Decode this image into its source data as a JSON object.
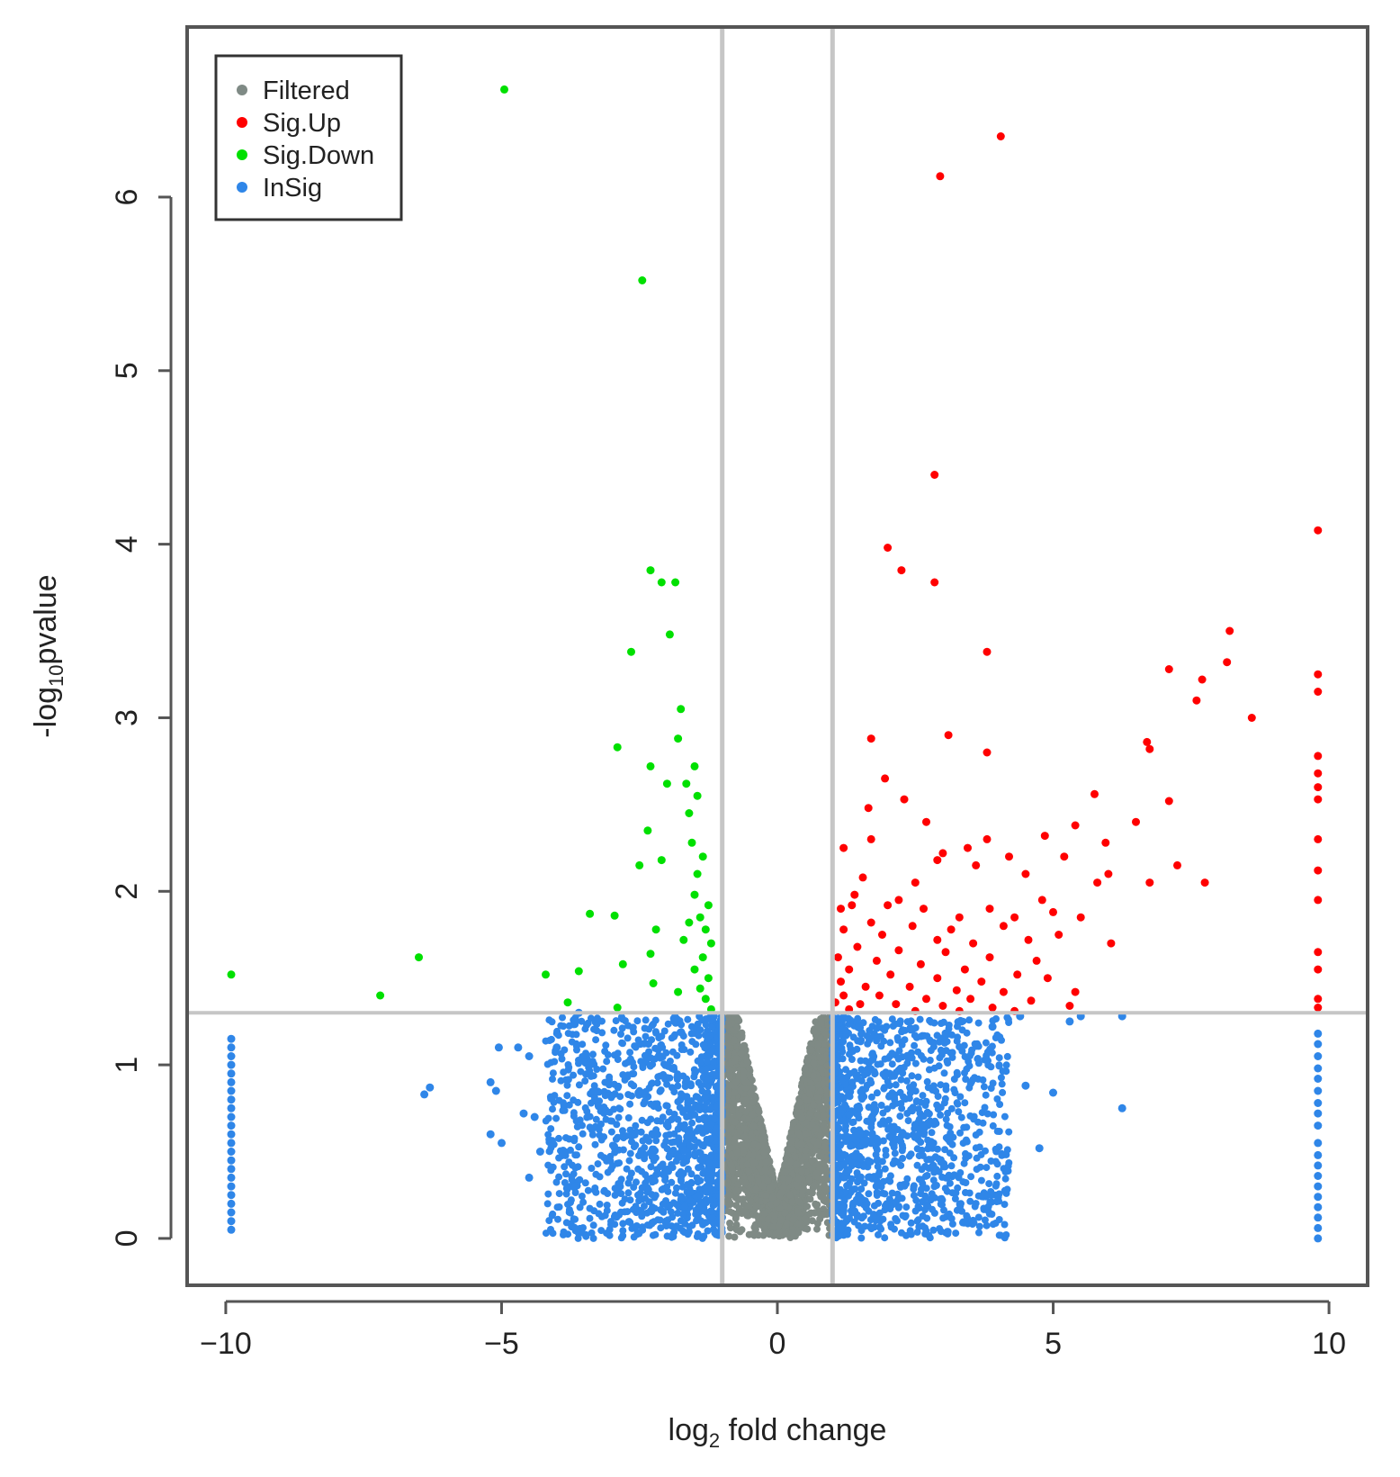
{
  "chart_data": {
    "type": "scatter",
    "title": "",
    "xlabel": "log2 fold change",
    "ylabel": "-log10pvalue",
    "xlim": [
      -10.7,
      10.7
    ],
    "ylim": [
      -0.27,
      6.98
    ],
    "xticks": [
      -10,
      -5,
      0,
      5,
      10
    ],
    "yticks": [
      0,
      1,
      2,
      3,
      4,
      5,
      6
    ],
    "xtick_labels": [
      "−10",
      "−5",
      "0",
      "5",
      "10"
    ],
    "ytick_labels": [
      "0",
      "1",
      "2",
      "3",
      "4",
      "5",
      "6"
    ],
    "thresholds": {
      "fold_change_lines": [
        -1,
        1
      ],
      "pvalue_line": 1.3
    },
    "legend": {
      "position": "top-left",
      "entries": [
        {
          "label": "Filtered",
          "color": "#7f8a85"
        },
        {
          "label": "Sig.Up",
          "color": "#ff0000"
        },
        {
          "label": "Sig.Down",
          "color": "#00e000"
        },
        {
          "label": "InSig",
          "color": "#2f86e8"
        }
      ]
    },
    "series": [
      {
        "name": "Sig.Down",
        "color": "#00e000",
        "points": [
          [
            -4.95,
            6.62
          ],
          [
            -2.45,
            5.52
          ],
          [
            -2.3,
            3.85
          ],
          [
            -2.1,
            3.78
          ],
          [
            -1.85,
            3.78
          ],
          [
            -1.95,
            3.48
          ],
          [
            -2.65,
            3.38
          ],
          [
            -1.75,
            3.05
          ],
          [
            -2.9,
            2.83
          ],
          [
            -1.8,
            2.88
          ],
          [
            -2.3,
            2.72
          ],
          [
            -1.5,
            2.72
          ],
          [
            -1.65,
            2.62
          ],
          [
            -2.0,
            2.62
          ],
          [
            -1.45,
            2.55
          ],
          [
            -1.6,
            2.45
          ],
          [
            -2.35,
            2.35
          ],
          [
            -1.55,
            2.28
          ],
          [
            -1.35,
            2.2
          ],
          [
            -2.5,
            2.15
          ],
          [
            -2.1,
            2.18
          ],
          [
            -1.45,
            2.1
          ],
          [
            -1.5,
            1.98
          ],
          [
            -1.25,
            1.92
          ],
          [
            -1.4,
            1.85
          ],
          [
            -3.4,
            1.87
          ],
          [
            -2.95,
            1.86
          ],
          [
            -1.6,
            1.82
          ],
          [
            -1.3,
            1.78
          ],
          [
            -2.2,
            1.78
          ],
          [
            -1.7,
            1.72
          ],
          [
            -1.2,
            1.7
          ],
          [
            -2.3,
            1.64
          ],
          [
            -1.35,
            1.62
          ],
          [
            -2.8,
            1.58
          ],
          [
            -6.5,
            1.62
          ],
          [
            -1.5,
            1.55
          ],
          [
            -3.6,
            1.54
          ],
          [
            -4.2,
            1.52
          ],
          [
            -1.25,
            1.5
          ],
          [
            -2.25,
            1.47
          ],
          [
            -9.9,
            1.52
          ],
          [
            -1.4,
            1.44
          ],
          [
            -1.8,
            1.42
          ],
          [
            -7.2,
            1.4
          ],
          [
            -1.3,
            1.38
          ],
          [
            -3.8,
            1.36
          ],
          [
            -2.9,
            1.33
          ],
          [
            -1.2,
            1.32
          ]
        ]
      },
      {
        "name": "Sig.Up",
        "color": "#ff0000",
        "points": [
          [
            4.05,
            6.35
          ],
          [
            2.95,
            6.12
          ],
          [
            2.85,
            4.4
          ],
          [
            2.0,
            3.98
          ],
          [
            2.25,
            3.85
          ],
          [
            2.85,
            3.78
          ],
          [
            9.8,
            4.08
          ],
          [
            3.8,
            3.38
          ],
          [
            8.2,
            3.5
          ],
          [
            7.1,
            3.28
          ],
          [
            8.15,
            3.32
          ],
          [
            7.7,
            3.22
          ],
          [
            9.8,
            3.25
          ],
          [
            9.8,
            3.15
          ],
          [
            7.6,
            3.1
          ],
          [
            8.6,
            3.0
          ],
          [
            3.1,
            2.9
          ],
          [
            1.7,
            2.88
          ],
          [
            6.7,
            2.86
          ],
          [
            6.75,
            2.82
          ],
          [
            3.8,
            2.8
          ],
          [
            9.8,
            2.78
          ],
          [
            9.8,
            2.68
          ],
          [
            1.95,
            2.65
          ],
          [
            9.8,
            2.6
          ],
          [
            5.75,
            2.56
          ],
          [
            9.8,
            2.53
          ],
          [
            2.3,
            2.53
          ],
          [
            7.1,
            2.52
          ],
          [
            1.65,
            2.48
          ],
          [
            2.7,
            2.4
          ],
          [
            6.5,
            2.4
          ],
          [
            5.4,
            2.38
          ],
          [
            4.85,
            2.32
          ],
          [
            9.8,
            2.3
          ],
          [
            1.7,
            2.3
          ],
          [
            3.8,
            2.3
          ],
          [
            5.95,
            2.28
          ],
          [
            1.2,
            2.25
          ],
          [
            3.45,
            2.25
          ],
          [
            3.0,
            2.22
          ],
          [
            4.2,
            2.2
          ],
          [
            2.9,
            2.18
          ],
          [
            7.25,
            2.15
          ],
          [
            9.8,
            2.12
          ],
          [
            6.0,
            2.1
          ],
          [
            7.75,
            2.05
          ],
          [
            6.75,
            2.05
          ],
          [
            5.8,
            2.05
          ],
          [
            1.55,
            2.08
          ],
          [
            2.5,
            2.05
          ],
          [
            4.5,
            2.1
          ],
          [
            5.2,
            2.2
          ],
          [
            3.6,
            2.15
          ],
          [
            1.4,
            1.98
          ],
          [
            9.8,
            1.95
          ],
          [
            4.8,
            1.95
          ],
          [
            2.2,
            1.95
          ],
          [
            3.85,
            1.9
          ],
          [
            5.0,
            1.88
          ],
          [
            1.15,
            1.9
          ],
          [
            1.35,
            1.92
          ],
          [
            2.0,
            1.92
          ],
          [
            2.65,
            1.9
          ],
          [
            3.3,
            1.85
          ],
          [
            4.3,
            1.85
          ],
          [
            5.5,
            1.85
          ],
          [
            1.7,
            1.82
          ],
          [
            2.45,
            1.8
          ],
          [
            3.15,
            1.78
          ],
          [
            4.1,
            1.8
          ],
          [
            1.2,
            1.78
          ],
          [
            1.9,
            1.75
          ],
          [
            2.9,
            1.72
          ],
          [
            3.55,
            1.7
          ],
          [
            4.55,
            1.72
          ],
          [
            5.1,
            1.75
          ],
          [
            6.05,
            1.7
          ],
          [
            1.45,
            1.68
          ],
          [
            2.2,
            1.66
          ],
          [
            3.05,
            1.65
          ],
          [
            3.85,
            1.62
          ],
          [
            4.7,
            1.6
          ],
          [
            1.1,
            1.62
          ],
          [
            1.8,
            1.6
          ],
          [
            9.8,
            1.65
          ],
          [
            2.6,
            1.58
          ],
          [
            3.4,
            1.55
          ],
          [
            4.35,
            1.52
          ],
          [
            1.3,
            1.55
          ],
          [
            2.05,
            1.52
          ],
          [
            2.9,
            1.5
          ],
          [
            3.7,
            1.48
          ],
          [
            4.9,
            1.5
          ],
          [
            1.15,
            1.48
          ],
          [
            9.8,
            1.55
          ],
          [
            1.6,
            1.45
          ],
          [
            2.4,
            1.45
          ],
          [
            3.25,
            1.43
          ],
          [
            4.1,
            1.42
          ],
          [
            5.4,
            1.42
          ],
          [
            1.2,
            1.4
          ],
          [
            1.85,
            1.4
          ],
          [
            2.7,
            1.38
          ],
          [
            3.5,
            1.38
          ],
          [
            4.6,
            1.37
          ],
          [
            9.8,
            1.38
          ],
          [
            1.05,
            1.36
          ],
          [
            1.5,
            1.35
          ],
          [
            2.15,
            1.35
          ],
          [
            3.0,
            1.34
          ],
          [
            3.9,
            1.33
          ],
          [
            5.3,
            1.34
          ],
          [
            9.8,
            1.33
          ],
          [
            1.3,
            1.32
          ],
          [
            2.5,
            1.31
          ],
          [
            3.3,
            1.31
          ],
          [
            4.3,
            1.31
          ]
        ]
      },
      {
        "name": "InSig",
        "color": "#2f86e8",
        "points": [
          [
            -9.9,
            1.15
          ],
          [
            -9.9,
            1.1
          ],
          [
            -9.9,
            1.05
          ],
          [
            -9.9,
            1.0
          ],
          [
            -9.9,
            0.95
          ],
          [
            -9.9,
            0.9
          ],
          [
            -9.9,
            0.85
          ],
          [
            -9.9,
            0.8
          ],
          [
            -9.9,
            0.75
          ],
          [
            -9.9,
            0.7
          ],
          [
            -9.9,
            0.65
          ],
          [
            -9.9,
            0.6
          ],
          [
            -9.9,
            0.55
          ],
          [
            -9.9,
            0.5
          ],
          [
            -9.9,
            0.45
          ],
          [
            -9.9,
            0.4
          ],
          [
            -9.9,
            0.35
          ],
          [
            -9.9,
            0.3
          ],
          [
            -9.9,
            0.25
          ],
          [
            -9.9,
            0.2
          ],
          [
            -9.9,
            0.15
          ],
          [
            -9.9,
            0.1
          ],
          [
            -9.9,
            0.05
          ],
          [
            9.8,
            1.18
          ],
          [
            9.8,
            1.12
          ],
          [
            9.8,
            1.05
          ],
          [
            9.8,
            0.98
          ],
          [
            9.8,
            0.92
          ],
          [
            9.8,
            0.85
          ],
          [
            9.8,
            0.78
          ],
          [
            9.8,
            0.72
          ],
          [
            9.8,
            0.65
          ],
          [
            9.8,
            0.55
          ],
          [
            9.8,
            0.48
          ],
          [
            9.8,
            0.42
          ],
          [
            9.8,
            0.36
          ],
          [
            9.8,
            0.3
          ],
          [
            9.8,
            0.24
          ],
          [
            9.8,
            0.18
          ],
          [
            9.8,
            0.12
          ],
          [
            9.8,
            0.06
          ],
          [
            9.8,
            0.0
          ],
          [
            -6.3,
            0.87
          ],
          [
            -6.4,
            0.83
          ],
          [
            -5.2,
            0.9
          ],
          [
            -5.1,
            0.85
          ],
          [
            -5.2,
            0.6
          ],
          [
            -5.0,
            0.55
          ],
          [
            -5.05,
            1.1
          ],
          [
            -4.7,
            1.1
          ],
          [
            -4.5,
            1.05
          ],
          [
            -4.0,
            1.1
          ],
          [
            -4.6,
            0.72
          ],
          [
            -4.4,
            0.7
          ],
          [
            -4.3,
            0.5
          ],
          [
            -4.5,
            0.35
          ],
          [
            -3.6,
            1.3
          ],
          [
            6.25,
            1.28
          ],
          [
            6.25,
            0.75
          ],
          [
            5.0,
            0.84
          ],
          [
            5.5,
            1.28
          ],
          [
            5.3,
            1.25
          ],
          [
            4.4,
            1.28
          ],
          [
            4.5,
            0.88
          ],
          [
            4.75,
            0.52
          ],
          [
            3.9,
            1.22
          ]
        ]
      }
    ]
  }
}
